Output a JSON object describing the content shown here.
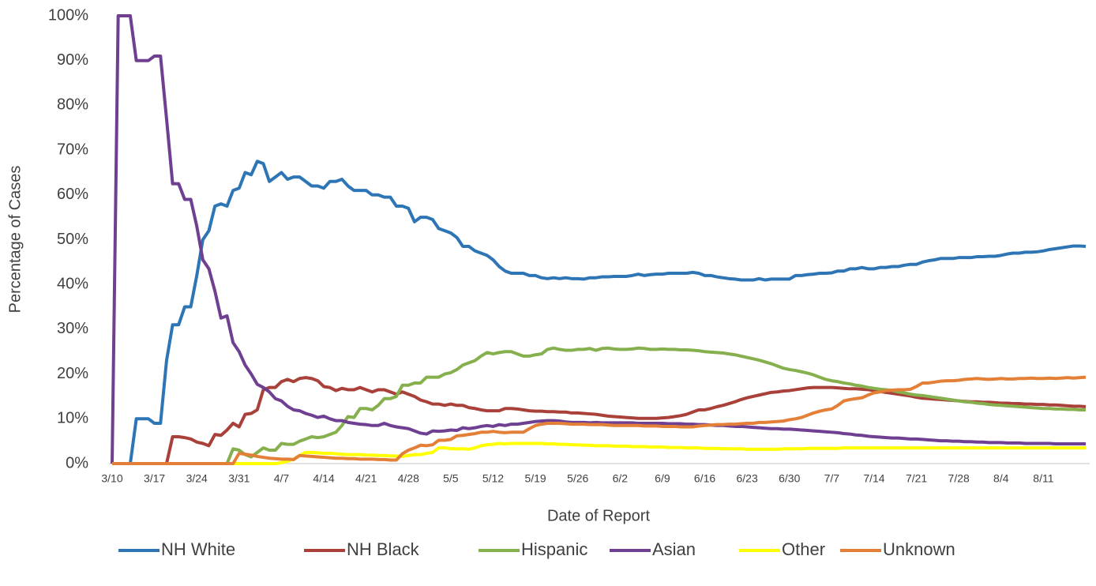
{
  "chart_data": {
    "type": "line",
    "x_label": "Date of Report",
    "y_label": "Percentage of Cases",
    "legend": "bottom",
    "grid": false,
    "ylim": [
      0,
      100
    ],
    "yticks": [
      {
        "value": 0,
        "label": "0%"
      },
      {
        "value": 10,
        "label": "10%"
      },
      {
        "value": 20,
        "label": "20%"
      },
      {
        "value": 30,
        "label": "30%"
      },
      {
        "value": 40,
        "label": "40%"
      },
      {
        "value": 50,
        "label": "50%"
      },
      {
        "value": 60,
        "label": "60%"
      },
      {
        "value": 70,
        "label": "70%"
      },
      {
        "value": 80,
        "label": "80%"
      },
      {
        "value": 90,
        "label": "90%"
      },
      {
        "value": 100,
        "label": "100%"
      }
    ],
    "categories": [
      "3/10",
      null,
      null,
      null,
      null,
      null,
      null,
      "3/17",
      null,
      null,
      null,
      null,
      null,
      null,
      "3/24",
      null,
      null,
      null,
      null,
      null,
      null,
      "3/31",
      null,
      null,
      null,
      null,
      null,
      null,
      "4/7",
      null,
      null,
      null,
      null,
      null,
      null,
      "4/14",
      null,
      null,
      null,
      null,
      null,
      null,
      "4/21",
      null,
      null,
      null,
      null,
      null,
      null,
      "4/28",
      null,
      null,
      null,
      null,
      null,
      null,
      "5/5",
      null,
      null,
      null,
      null,
      null,
      null,
      "5/12",
      null,
      null,
      null,
      null,
      null,
      null,
      "5/19",
      null,
      null,
      null,
      null,
      null,
      null,
      "5/26",
      null,
      null,
      null,
      null,
      null,
      null,
      "6/2",
      null,
      null,
      null,
      null,
      null,
      null,
      "6/9",
      null,
      null,
      null,
      null,
      null,
      null,
      "6/16",
      null,
      null,
      null,
      null,
      null,
      null,
      "6/23",
      null,
      null,
      null,
      null,
      null,
      null,
      "6/30",
      null,
      null,
      null,
      null,
      null,
      null,
      "7/7",
      null,
      null,
      null,
      null,
      null,
      null,
      "7/14",
      null,
      null,
      null,
      null,
      null,
      null,
      "7/21",
      null,
      null,
      null,
      null,
      null,
      null,
      "7/28",
      null,
      null,
      null,
      null,
      null,
      null,
      "8/4",
      null,
      null,
      null,
      null,
      null,
      null,
      "8/11",
      null,
      null,
      null,
      null,
      null,
      null,
      null
    ],
    "series": [
      {
        "name": "NH White",
        "color": "#2e75b6",
        "values": [
          0,
          0,
          0,
          0,
          10,
          10,
          10,
          9,
          9,
          23,
          31,
          31,
          35,
          35,
          42,
          50,
          52,
          57.5,
          58,
          57.5,
          61,
          61.5,
          65,
          64.5,
          67.5,
          67,
          63,
          64,
          65,
          63.5,
          64,
          64,
          63,
          62,
          62,
          61.5,
          63,
          63,
          63.5,
          62,
          61,
          61,
          61,
          60,
          60,
          59.5,
          59.5,
          57.5,
          57.5,
          57,
          54,
          55,
          55,
          54.5,
          52.5,
          52,
          51.5,
          50.5,
          48.5,
          48.5,
          47.5,
          47,
          46.5,
          45.5,
          44,
          43,
          42.5,
          42.5,
          42.5,
          42,
          42,
          41.5,
          41.3,
          41.5,
          41.3,
          41.5,
          41.3,
          41.3,
          41.2,
          41.5,
          41.5,
          41.7,
          41.7,
          41.8,
          41.8,
          41.8,
          42,
          42.3,
          42,
          42.2,
          42.3,
          42.3,
          42.5,
          42.5,
          42.5,
          42.5,
          42.7,
          42.5,
          42,
          42,
          41.7,
          41.5,
          41.3,
          41.2,
          41,
          41,
          41,
          41.3,
          41,
          41.2,
          41.2,
          41.2,
          41.2,
          42,
          42,
          42.2,
          42.3,
          42.5,
          42.5,
          42.6,
          43,
          43,
          43.5,
          43.5,
          43.8,
          43.5,
          43.5,
          43.8,
          43.8,
          44,
          44,
          44.3,
          44.5,
          44.5,
          45,
          45.3,
          45.5,
          45.8,
          45.8,
          45.8,
          46,
          46,
          46,
          46.2,
          46.2,
          46.3,
          46.3,
          46.5,
          46.8,
          47,
          47,
          47.2,
          47.2,
          47.3,
          47.5,
          47.8,
          48,
          48.2,
          48.4,
          48.6,
          48.6,
          48.5
        ]
      },
      {
        "name": "NH Black",
        "color": "#a9413a",
        "values": [
          0,
          0,
          0,
          0,
          0,
          0,
          0,
          0,
          0,
          0,
          6,
          6,
          5.8,
          5.5,
          4.8,
          4.5,
          4,
          6.5,
          6.3,
          7.5,
          9,
          8.2,
          11,
          11.2,
          12,
          16.5,
          17,
          17,
          18.3,
          18.8,
          18.3,
          19,
          19.2,
          19,
          18.5,
          17.2,
          17,
          16.3,
          16.8,
          16.5,
          16.5,
          17,
          16.5,
          16,
          16.5,
          16.5,
          16,
          15.5,
          16,
          15.5,
          15,
          14.2,
          13.8,
          13.3,
          13.3,
          13,
          13.3,
          13,
          13,
          12.5,
          12.3,
          12,
          11.8,
          11.8,
          11.8,
          12.3,
          12.3,
          12.2,
          12,
          11.8,
          11.7,
          11.7,
          11.6,
          11.6,
          11.5,
          11.5,
          11.3,
          11.3,
          11.2,
          11.1,
          11,
          10.8,
          10.6,
          10.5,
          10.4,
          10.3,
          10.2,
          10.1,
          10.1,
          10.1,
          10.1,
          10.2,
          10.3,
          10.5,
          10.7,
          11,
          11.5,
          12,
          12,
          12.3,
          12.7,
          13,
          13.4,
          13.8,
          14.3,
          14.7,
          15,
          15.3,
          15.6,
          15.9,
          16,
          16.2,
          16.3,
          16.5,
          16.7,
          16.9,
          17,
          17,
          17,
          17,
          16.9,
          16.8,
          16.7,
          16.7,
          16.6,
          16.5,
          16.3,
          16.1,
          15.9,
          15.7,
          15.5,
          15.3,
          15.1,
          14.8,
          14.6,
          14.5,
          14.4,
          14.3,
          14.2,
          14.1,
          14,
          13.9,
          13.8,
          13.8,
          13.7,
          13.7,
          13.6,
          13.5,
          13.5,
          13.4,
          13.4,
          13.3,
          13.3,
          13.2,
          13.2,
          13.1,
          13.1,
          13,
          12.9,
          12.8,
          12.8,
          12.7
        ]
      },
      {
        "name": "Hispanic",
        "color": "#86b04d",
        "values": [
          0,
          0,
          0,
          0,
          0,
          0,
          0,
          0,
          0,
          0,
          0,
          0,
          0,
          0,
          0,
          0,
          0,
          0,
          0,
          0,
          3.3,
          3,
          2,
          1.5,
          2.5,
          3.5,
          3,
          3,
          4.5,
          4.3,
          4.3,
          5,
          5.5,
          6,
          5.8,
          6,
          6.5,
          7,
          8.5,
          10.5,
          10.3,
          12.3,
          12.3,
          12,
          13,
          14.5,
          14.5,
          15,
          17.5,
          17.5,
          18,
          18,
          19.3,
          19.3,
          19.3,
          20,
          20.3,
          21,
          22,
          22.5,
          23,
          24,
          24.8,
          24.5,
          24.8,
          25,
          25,
          24.5,
          24,
          24,
          24.3,
          24.5,
          25.5,
          25.8,
          25.5,
          25.3,
          25.3,
          25.5,
          25.5,
          25.7,
          25.3,
          25.7,
          25.8,
          25.6,
          25.5,
          25.5,
          25.6,
          25.8,
          25.7,
          25.5,
          25.5,
          25.6,
          25.5,
          25.5,
          25.4,
          25.4,
          25.3,
          25.2,
          25,
          24.9,
          24.8,
          24.7,
          24.5,
          24.3,
          24,
          23.7,
          23.4,
          23.1,
          22.7,
          22.3,
          21.8,
          21.3,
          21,
          20.8,
          20.5,
          20.2,
          19.8,
          19.3,
          18.8,
          18.5,
          18.3,
          18,
          17.8,
          17.5,
          17.3,
          17,
          16.8,
          16.6,
          16.5,
          16.3,
          16,
          15.8,
          15.5,
          15.3,
          15.2,
          15,
          14.8,
          14.6,
          14.4,
          14.2,
          14,
          13.8,
          13.7,
          13.5,
          13.4,
          13.2,
          13.1,
          13,
          12.9,
          12.8,
          12.7,
          12.6,
          12.5,
          12.4,
          12.3,
          12.3,
          12.2,
          12.2,
          12.1,
          12.1,
          12,
          12
        ]
      },
      {
        "name": "Asian",
        "color": "#6f3f92",
        "values": [
          0,
          100,
          100,
          100,
          90,
          90,
          90,
          91,
          91,
          77,
          62.5,
          62.5,
          59,
          59,
          53,
          45.5,
          43.5,
          38.5,
          32.5,
          33,
          27,
          25,
          22,
          20,
          17.7,
          17,
          16,
          14.5,
          14,
          12.8,
          12,
          11.8,
          11.2,
          10.8,
          10.3,
          10.6,
          10,
          9.6,
          9.6,
          9.2,
          9,
          8.8,
          8.7,
          8.5,
          8.5,
          9,
          8.5,
          8.2,
          8,
          7.8,
          7.3,
          6.8,
          6.6,
          7.3,
          7.2,
          7.3,
          7.5,
          7.4,
          8,
          7.8,
          8,
          8.3,
          8.5,
          8.3,
          8.7,
          8.5,
          8.8,
          8.8,
          9,
          9.2,
          9.4,
          9.5,
          9.6,
          9.6,
          9.5,
          9.3,
          9.2,
          9.2,
          9.2,
          9.1,
          9.2,
          9.1,
          9.1,
          9.1,
          9.1,
          9.1,
          9.1,
          9,
          9,
          9,
          9,
          9,
          8.9,
          8.9,
          8.9,
          8.8,
          8.8,
          8.7,
          8.7,
          8.6,
          8.5,
          8.5,
          8.4,
          8.3,
          8.3,
          8.2,
          8.1,
          8,
          7.9,
          7.8,
          7.8,
          7.7,
          7.7,
          7.6,
          7.5,
          7.4,
          7.3,
          7.2,
          7.1,
          7,
          6.9,
          6.7,
          6.6,
          6.4,
          6.3,
          6.1,
          6,
          5.9,
          5.8,
          5.7,
          5.7,
          5.6,
          5.5,
          5.5,
          5.4,
          5.3,
          5.2,
          5.1,
          5.1,
          5,
          5,
          4.9,
          4.9,
          4.8,
          4.8,
          4.7,
          4.7,
          4.7,
          4.6,
          4.6,
          4.6,
          4.5,
          4.5,
          4.5,
          4.5,
          4.5,
          4.4,
          4.4,
          4.4,
          4.4,
          4.4,
          4.4
        ]
      },
      {
        "name": "Other",
        "color": "#ffff00",
        "values": [
          0,
          0,
          0,
          0,
          0,
          0,
          0,
          0,
          0,
          0,
          0,
          0,
          0,
          0,
          0,
          0,
          0,
          0,
          0,
          0,
          0,
          0,
          0,
          0,
          0,
          0,
          0,
          0,
          0.2,
          0.5,
          1,
          1.8,
          2.5,
          2.5,
          2.4,
          2.3,
          2.3,
          2.2,
          2.1,
          2,
          2,
          2,
          1.9,
          1.9,
          1.8,
          1.8,
          1.7,
          1.7,
          1.6,
          1.8,
          2,
          2,
          2.3,
          2.5,
          3.5,
          3.5,
          3.3,
          3.3,
          3.3,
          3.2,
          3.5,
          4,
          4.2,
          4.3,
          4.5,
          4.4,
          4.5,
          4.5,
          4.5,
          4.5,
          4.5,
          4.5,
          4.4,
          4.4,
          4.3,
          4.3,
          4.2,
          4.2,
          4.1,
          4.1,
          4,
          4,
          4,
          3.9,
          3.9,
          3.9,
          3.8,
          3.8,
          3.8,
          3.7,
          3.7,
          3.7,
          3.6,
          3.6,
          3.6,
          3.5,
          3.5,
          3.5,
          3.4,
          3.4,
          3.4,
          3.3,
          3.3,
          3.3,
          3.3,
          3.2,
          3.2,
          3.2,
          3.2,
          3.2,
          3.2,
          3.3,
          3.3,
          3.3,
          3.3,
          3.4,
          3.4,
          3.4,
          3.4,
          3.4,
          3.4,
          3.5,
          3.5,
          3.5,
          3.5,
          3.5,
          3.5,
          3.5,
          3.5,
          3.5,
          3.5,
          3.5,
          3.5,
          3.5,
          3.5,
          3.5,
          3.5,
          3.5,
          3.5,
          3.5,
          3.5,
          3.5,
          3.5,
          3.5,
          3.5,
          3.5,
          3.5,
          3.5,
          3.5,
          3.5,
          3.5,
          3.5,
          3.5,
          3.5,
          3.5,
          3.5,
          3.5,
          3.5,
          3.5,
          3.5,
          3.5,
          3.5
        ]
      },
      {
        "name": "Unknown",
        "color": "#e47f37",
        "values": [
          0,
          0,
          0,
          0,
          0,
          0,
          0,
          0,
          0,
          0,
          0,
          0,
          0,
          0,
          0,
          0,
          0,
          0,
          0,
          0,
          0,
          2.3,
          2.1,
          1.9,
          1.6,
          1.4,
          1.2,
          1.1,
          1,
          1,
          0.9,
          1.8,
          1.7,
          1.6,
          1.5,
          1.4,
          1.3,
          1.2,
          1.2,
          1.1,
          1.1,
          1,
          1,
          1,
          0.9,
          0.9,
          0.8,
          0.8,
          2.2,
          3,
          3.5,
          4.1,
          4,
          4.2,
          5.2,
          5.2,
          5.4,
          6.2,
          6.3,
          6.5,
          6.7,
          7,
          7,
          7.2,
          7,
          6.9,
          7,
          7,
          7,
          7.8,
          8.5,
          8.8,
          9,
          9,
          9,
          8.9,
          8.8,
          8.8,
          8.8,
          8.7,
          8.7,
          8.7,
          8.6,
          8.5,
          8.5,
          8.5,
          8.5,
          8.5,
          8.4,
          8.4,
          8.4,
          8.3,
          8.3,
          8.3,
          8.2,
          8.2,
          8.2,
          8.4,
          8.5,
          8.6,
          8.7,
          8.7,
          8.8,
          8.8,
          8.9,
          9,
          9,
          9.2,
          9.2,
          9.3,
          9.4,
          9.5,
          9.8,
          10,
          10.3,
          10.8,
          11.3,
          11.7,
          12,
          12.2,
          13,
          14,
          14.3,
          14.5,
          14.7,
          15.3,
          15.8,
          16,
          16.3,
          16.4,
          16.5,
          16.5,
          16.6,
          17.2,
          18,
          18,
          18.2,
          18.4,
          18.5,
          18.5,
          18.6,
          18.8,
          18.9,
          19,
          18.9,
          18.8,
          18.9,
          19,
          18.9,
          18.9,
          19,
          19,
          19.1,
          19,
          19,
          19.1,
          19,
          19.1,
          19.2,
          19.1,
          19.2,
          19.3
        ]
      }
    ]
  }
}
